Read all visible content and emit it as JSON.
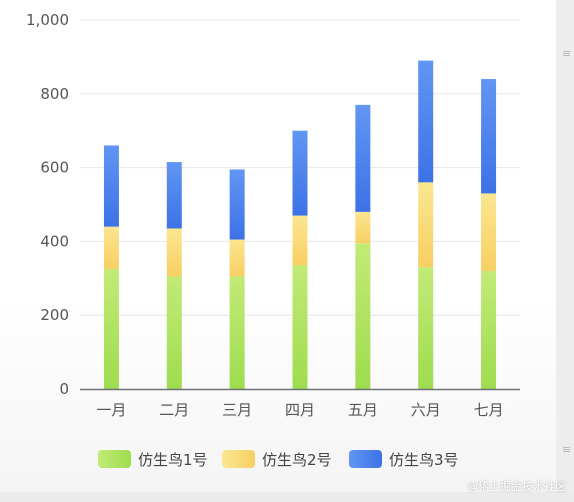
{
  "chart_data": {
    "type": "bar",
    "stacked": true,
    "categories": [
      "一月",
      "二月",
      "三月",
      "四月",
      "五月",
      "六月",
      "七月"
    ],
    "series": [
      {
        "name": "仿生鸟1号",
        "values": [
          325,
          305,
          305,
          335,
          395,
          330,
          320
        ],
        "color": "#9edc4e",
        "color_light": "#c2ea77"
      },
      {
        "name": "仿生鸟2号",
        "values": [
          115,
          130,
          100,
          135,
          85,
          230,
          210
        ],
        "color": "#f7cf63",
        "color_light": "#fbe690"
      },
      {
        "name": "仿生鸟3号",
        "values": [
          220,
          180,
          190,
          230,
          290,
          330,
          310
        ],
        "color": "#3d72e8",
        "color_light": "#6196f2"
      }
    ],
    "ylim": [
      0,
      1000
    ],
    "yticks": [
      0,
      200,
      400,
      600,
      800,
      "1,000"
    ],
    "grid": true,
    "legend_position": "bottom-center",
    "title": "",
    "xlabel": "",
    "ylabel": ""
  },
  "watermark": "@稀土掘金技术社区"
}
